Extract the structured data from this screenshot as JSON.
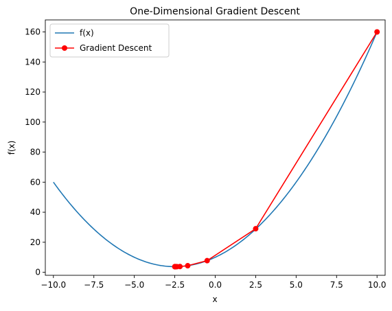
{
  "chart_data": {
    "type": "line",
    "title": "One-Dimensional Gradient Descent",
    "xlabel": "x",
    "ylabel": "f(x)",
    "xlim": [
      -10.5,
      10.5
    ],
    "ylim": [
      -2,
      168
    ],
    "xticks": [
      -10.0,
      -7.5,
      -5.0,
      -2.5,
      0.0,
      2.5,
      5.0,
      7.5,
      10.0
    ],
    "xtick_labels": [
      "−10.0",
      "−7.5",
      "−5.0",
      "−2.5",
      "0.0",
      "2.5",
      "5.0",
      "7.5",
      "10.0"
    ],
    "yticks": [
      0,
      20,
      40,
      60,
      80,
      100,
      120,
      140,
      160
    ],
    "ytick_labels": [
      "0",
      "20",
      "40",
      "60",
      "80",
      "100",
      "120",
      "140",
      "160"
    ],
    "grid": false,
    "legend_position": "upper-left",
    "series": [
      {
        "name": "f(x)",
        "color": "#1f77b4",
        "style": "line",
        "function": "x^2 + 5x + 10",
        "x_range": [
          -10,
          10
        ]
      },
      {
        "name": "Gradient Descent",
        "color": "#ff0000",
        "style": "line-with-markers",
        "x": [
          10.0,
          2.5,
          -0.5,
          -1.7,
          -2.18,
          -2.372,
          -2.449,
          -2.479,
          -2.492,
          -2.497
        ],
        "y": [
          160.0,
          29.0,
          7.75,
          4.39,
          3.85,
          3.76,
          3.75,
          3.75,
          3.75,
          3.75
        ]
      }
    ]
  }
}
